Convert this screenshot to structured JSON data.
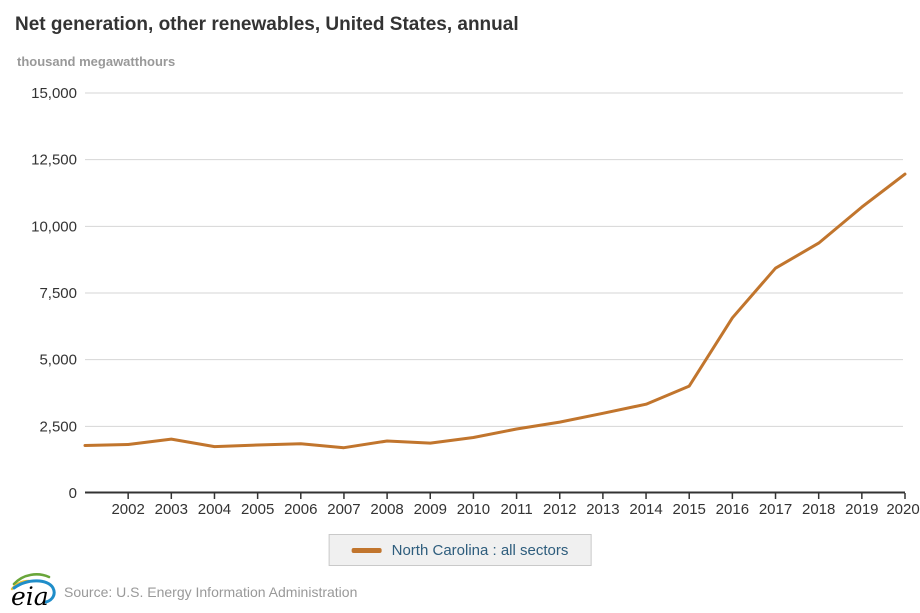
{
  "header": {
    "title": "Net generation, other renewables, United States, annual",
    "subtitle": "thousand megawatthours"
  },
  "chart_data": {
    "type": "line",
    "title": "Net generation, other renewables, United States, annual",
    "ylabel": "thousand megawatthours",
    "xlabel": "",
    "x": [
      2001,
      2002,
      2003,
      2004,
      2005,
      2006,
      2007,
      2008,
      2009,
      2010,
      2011,
      2012,
      2013,
      2014,
      2015,
      2016,
      2017,
      2018,
      2019,
      2020
    ],
    "series": [
      {
        "name": "North Carolina : all sectors",
        "color": "#c1752d",
        "values": [
          1780,
          1820,
          2020,
          1740,
          1800,
          1850,
          1700,
          1950,
          1870,
          2080,
          2400,
          2660,
          2990,
          3330,
          4010,
          6570,
          8430,
          9370,
          10720,
          11960
        ]
      }
    ],
    "ylim": [
      0,
      15000
    ],
    "y_ticks": [
      0,
      2500,
      5000,
      7500,
      10000,
      12500,
      15000
    ],
    "x_tick_labels": [
      "2002",
      "2003",
      "2004",
      "2005",
      "2006",
      "2007",
      "2008",
      "2009",
      "2010",
      "2011",
      "2012",
      "2013",
      "2014",
      "2015",
      "2016",
      "2017",
      "2018",
      "2019",
      "2020"
    ],
    "grid": "horizontal",
    "legend_position": "bottom"
  },
  "legend": {
    "label": "North Carolina : all sectors"
  },
  "footer": {
    "source": "Source: U.S. Energy Information Administration",
    "logo_text": "eia"
  },
  "colors": {
    "line": "#c1752d",
    "grid": "#d6d6d6",
    "axis": "#333333",
    "axis_text": "#333333",
    "title": "#333333",
    "subtitle": "#999999",
    "legend_text": "#2e5d7d",
    "legend_bg": "#f0f0f0",
    "legend_border": "#c9c9c9",
    "source_text": "#999999",
    "logo_green": "#69a63a",
    "logo_blue": "#1f8dc9",
    "logo_yellow": "#f2c12e",
    "logo_black": "#000000"
  }
}
